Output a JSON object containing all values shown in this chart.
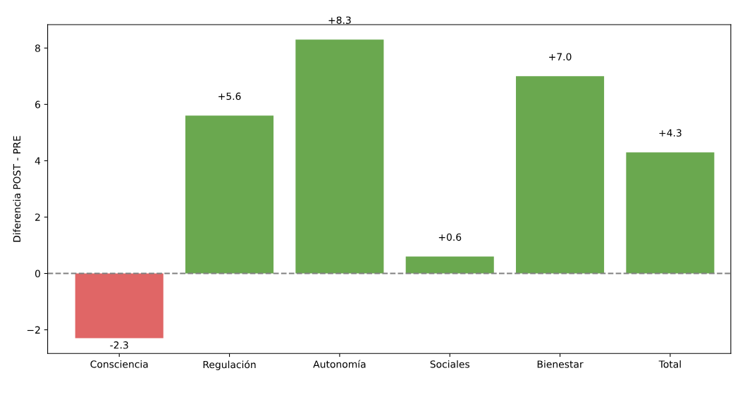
{
  "chart_data": {
    "type": "bar",
    "ylabel": "Diferencia POST - PRE",
    "categories": [
      "Consciencia",
      "Regulación",
      "Autonomía",
      "Sociales",
      "Bienestar",
      "Total"
    ],
    "values": [
      -2.3,
      5.6,
      8.3,
      0.6,
      7.0,
      4.3
    ],
    "colors": [
      "#e06666",
      "#6aa84f",
      "#6aa84f",
      "#6aa84f",
      "#6aa84f",
      "#6aa84f"
    ],
    "value_labels": [
      "-2.3",
      "+5.6",
      "+8.3",
      "+0.6",
      "+7.0",
      "+4.3"
    ],
    "ylim": [
      -2.84,
      8.83
    ],
    "yticks": [
      {
        "value": -2,
        "label": "−2"
      },
      0,
      2,
      4,
      6,
      8
    ],
    "ref_lines": [
      {
        "axis": "y",
        "value": 0,
        "color": "#808080",
        "line_style": "dashed"
      }
    ],
    "grid": false
  }
}
